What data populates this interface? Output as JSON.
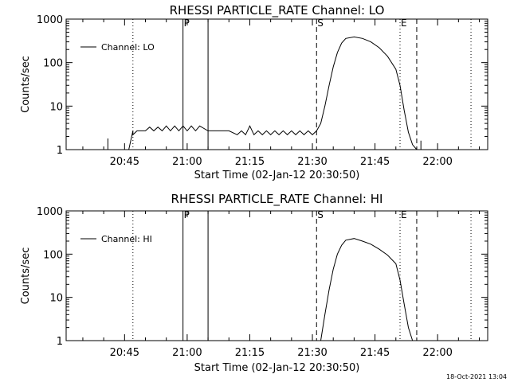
{
  "footer": {
    "timestamp": "18-Oct-2021 13:04"
  },
  "chart_data": [
    {
      "type": "line",
      "title": "RHESSI PARTICLE_RATE Channel: LO",
      "xlabel": "Start Time (02-Jan-12 20:30:50)",
      "ylabel": "Counts/sec",
      "xlim": [
        "20:31",
        "22:12"
      ],
      "ylim": [
        1,
        1000
      ],
      "yscale": "log",
      "xticks": [
        "20:45",
        "21:00",
        "21:15",
        "21:30",
        "21:45",
        "22:00"
      ],
      "yticks": [
        "1",
        "10",
        "100",
        "1000"
      ],
      "legend": "top-left",
      "legend_entry": "Channel: LO",
      "markers": [
        {
          "time": "20:47",
          "style": "dotted",
          "label": ""
        },
        {
          "time": "20:59",
          "style": "solid",
          "label": "P"
        },
        {
          "time": "21:05",
          "style": "solid",
          "label": ""
        },
        {
          "time": "21:31",
          "style": "dashed",
          "label": "S"
        },
        {
          "time": "21:51",
          "style": "dotted",
          "label": "E"
        },
        {
          "time": "21:55",
          "style": "dashed",
          "label": ""
        },
        {
          "time": "22:08",
          "style": "dotted",
          "label": ""
        }
      ],
      "series": [
        {
          "name": "Channel: LO",
          "segments": [
            {
              "x": [
                "20:41",
                "20:41",
                "20:41"
              ],
              "y": [
                1,
                1.8,
                1
              ]
            },
            {
              "x": [
                "20:46",
                "20:47",
                "20:47",
                "20:48",
                "20:50",
                "20:51",
                "20:52",
                "20:53",
                "20:54",
                "20:55",
                "20:56",
                "20:57",
                "20:58",
                "20:59",
                "21:00",
                "21:01",
                "21:02",
                "21:03",
                "21:05",
                "21:10",
                "21:12",
                "21:13",
                "21:14",
                "21:15",
                "21:16",
                "21:17",
                "21:18",
                "21:19",
                "21:20",
                "21:21",
                "21:22",
                "21:23",
                "21:24",
                "21:25",
                "21:26",
                "21:27",
                "21:28",
                "21:29",
                "21:30",
                "21:31",
                "21:32",
                "21:33",
                "21:34",
                "21:35",
                "21:36",
                "21:37",
                "21:38",
                "21:40",
                "21:42",
                "21:44",
                "21:46",
                "21:48",
                "21:50",
                "21:51",
                "21:52",
                "21:53",
                "21:54",
                "21:55"
              ],
              "y": [
                1,
                2.7,
                2.2,
                2.7,
                2.7,
                3.3,
                2.7,
                3.3,
                2.7,
                3.5,
                2.7,
                3.5,
                2.7,
                3.5,
                2.7,
                3.5,
                2.7,
                3.5,
                2.7,
                2.7,
                2.2,
                2.7,
                2.2,
                3.5,
                2.2,
                2.7,
                2.2,
                2.7,
                2.2,
                2.7,
                2.2,
                2.7,
                2.2,
                2.7,
                2.2,
                2.7,
                2.2,
                2.7,
                2.2,
                2.7,
                4,
                10,
                30,
                80,
                170,
                280,
                360,
                390,
                360,
                300,
                220,
                140,
                70,
                30,
                8,
                2.5,
                1.3,
                1
              ]
            },
            {
              "x": [
                "21:56",
                "21:56",
                "21:56"
              ],
              "y": [
                1,
                1.6,
                1
              ]
            }
          ]
        }
      ]
    },
    {
      "type": "line",
      "title": "RHESSI PARTICLE_RATE Channel: HI",
      "xlabel": "Start Time (02-Jan-12 20:30:50)",
      "ylabel": "Counts/sec",
      "xlim": [
        "20:31",
        "22:12"
      ],
      "ylim": [
        1,
        1000
      ],
      "yscale": "log",
      "xticks": [
        "20:45",
        "21:00",
        "21:15",
        "21:30",
        "21:45",
        "22:00"
      ],
      "yticks": [
        "1",
        "10",
        "100",
        "1000"
      ],
      "legend": "top-left",
      "legend_entry": "Channel: HI",
      "markers": [
        {
          "time": "20:47",
          "style": "dotted",
          "label": ""
        },
        {
          "time": "20:59",
          "style": "solid",
          "label": "P"
        },
        {
          "time": "21:05",
          "style": "solid",
          "label": ""
        },
        {
          "time": "21:31",
          "style": "dashed",
          "label": "S"
        },
        {
          "time": "21:51",
          "style": "dotted",
          "label": "E"
        },
        {
          "time": "21:55",
          "style": "dashed",
          "label": ""
        },
        {
          "time": "22:08",
          "style": "dotted",
          "label": ""
        }
      ],
      "series": [
        {
          "name": "Channel: HI",
          "segments": [
            {
              "x": [
                "21:32",
                "21:33",
                "21:34",
                "21:35",
                "21:36",
                "21:37",
                "21:38",
                "21:40",
                "21:42",
                "21:44",
                "21:46",
                "21:48",
                "21:50",
                "21:51",
                "21:52",
                "21:53",
                "21:54"
              ],
              "y": [
                1,
                4,
                15,
                45,
                100,
                160,
                210,
                230,
                200,
                170,
                130,
                95,
                60,
                25,
                7,
                2,
                1
              ]
            }
          ]
        }
      ]
    }
  ]
}
